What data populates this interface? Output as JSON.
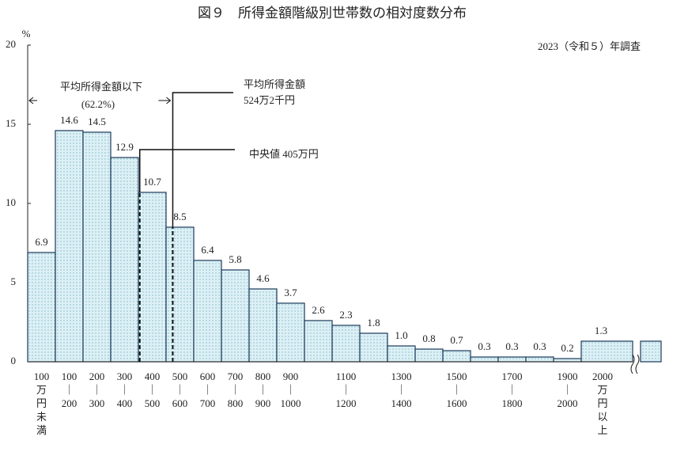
{
  "chart_data": {
    "type": "bar",
    "title": "図９　所得金額階級別世帯数の相対度数分布",
    "note": "2023（令和５）年調査",
    "y_label": "%",
    "categories": [
      [
        "100",
        "万",
        "円",
        "未",
        "満"
      ],
      [
        "100",
        "｜",
        "200"
      ],
      [
        "200",
        "｜",
        "300"
      ],
      [
        "300",
        "｜",
        "400"
      ],
      [
        "400",
        "｜",
        "500"
      ],
      [
        "500",
        "｜",
        "600"
      ],
      [
        "600",
        "｜",
        "700"
      ],
      [
        "700",
        "｜",
        "800"
      ],
      [
        "800",
        "｜",
        "900"
      ],
      [
        "900",
        "｜",
        "1000"
      ],
      null,
      [
        "1100",
        "｜",
        "1200"
      ],
      null,
      [
        "1300",
        "｜",
        "1400"
      ],
      null,
      [
        "1500",
        "｜",
        "1600"
      ],
      null,
      [
        "1700",
        "｜",
        "1800"
      ],
      null,
      [
        "1900",
        "｜",
        "2000"
      ],
      [
        "2000",
        "万",
        "円",
        "以",
        "上"
      ]
    ],
    "values": [
      6.9,
      14.6,
      14.5,
      12.9,
      10.7,
      8.5,
      6.4,
      5.8,
      4.6,
      3.7,
      2.6,
      2.3,
      1.8,
      1.0,
      0.8,
      0.7,
      0.3,
      0.3,
      0.3,
      0.2,
      1.3
    ],
    "value_labels": [
      "6.9",
      "14.6",
      "14.5",
      "12.9",
      "10.7",
      "8.5",
      "6.4",
      "5.8",
      "4.6",
      "3.7",
      "2.6",
      "2.3",
      "1.8",
      "1.0",
      "0.8",
      "0.7",
      "0.3",
      "0.3",
      "0.3",
      "0.2",
      "1.3"
    ],
    "color": "#dcf0f5",
    "ylim": [
      0,
      20
    ],
    "yticks": [
      0,
      5,
      10,
      15,
      20
    ],
    "mean": {
      "value": 524.2,
      "title": "平均所得金額",
      "label": "524万2千円"
    },
    "median": {
      "value": 405,
      "label": "中央値 405万円"
    },
    "below_mean": {
      "label": "平均所得金額以下",
      "share": "(62.2%)"
    }
  }
}
